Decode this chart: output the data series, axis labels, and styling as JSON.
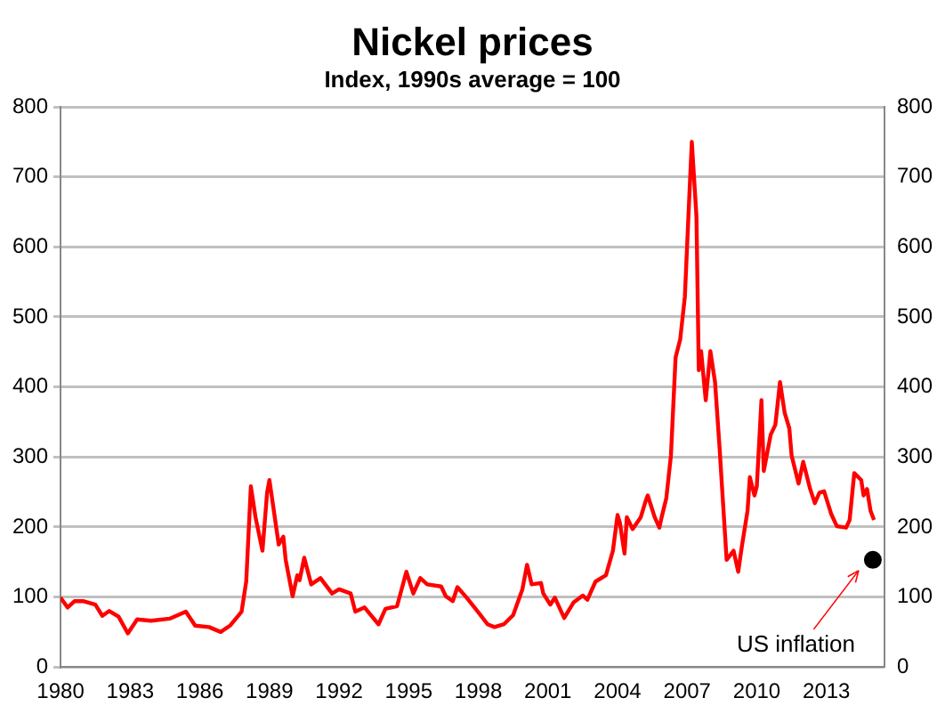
{
  "chart_data": {
    "type": "line",
    "title": "Nickel prices",
    "subtitle": "Index, 1990s average = 100",
    "xlim": [
      1980,
      2015.5
    ],
    "xticks": [
      1980,
      1983,
      1986,
      1989,
      1992,
      1995,
      1998,
      2001,
      2004,
      2007,
      2010,
      2013
    ],
    "ylim": [
      0,
      800
    ],
    "yticks": [
      0,
      100,
      200,
      300,
      400,
      500,
      600,
      700,
      800
    ],
    "y2lim": [
      0,
      800
    ],
    "y2ticks": [
      0,
      100,
      200,
      300,
      400,
      500,
      600,
      700,
      800
    ],
    "grid": "y",
    "legend": false,
    "marker": "none",
    "line_style": "solid",
    "series": [
      {
        "color": "#ff0000",
        "x": [
          1980.0,
          1980.3,
          1980.6,
          1981.0,
          1981.5,
          1981.8,
          1982.1,
          1982.5,
          1982.9,
          1983.3,
          1983.9,
          1984.7,
          1985.4,
          1985.8,
          1986.4,
          1986.9,
          1987.3,
          1987.8,
          1988.0,
          1988.2,
          1988.4,
          1988.7,
          1988.9,
          1989.0,
          1989.4,
          1989.6,
          1989.7,
          1990.0,
          1990.2,
          1990.3,
          1990.5,
          1990.8,
          1991.2,
          1991.7,
          1992.0,
          1992.5,
          1992.7,
          1993.1,
          1993.7,
          1994.0,
          1994.5,
          1994.9,
          1995.2,
          1995.5,
          1995.8,
          1996.4,
          1996.6,
          1996.9,
          1997.1,
          1997.5,
          1998.05,
          1998.4,
          1998.7,
          1999.1,
          1999.5,
          1999.9,
          2000.1,
          2000.3,
          2000.7,
          2000.8,
          2001.1,
          2001.3,
          2001.7,
          2002.1,
          2002.5,
          2002.7,
          2003.05,
          2003.5,
          2003.8,
          2004.0,
          2004.1,
          2004.3,
          2004.4,
          2004.65,
          2005.0,
          2005.2,
          2005.3,
          2005.6,
          2005.8,
          2005.9,
          2006.1,
          2006.3,
          2006.5,
          2006.7,
          2006.9,
          2007.1,
          2007.2,
          2007.4,
          2007.5,
          2007.6,
          2007.8,
          2008.0,
          2008.2,
          2008.4,
          2008.5,
          2008.7,
          2009.0,
          2009.2,
          2009.35,
          2009.6,
          2009.7,
          2009.9,
          2010.0,
          2010.2,
          2010.3,
          2010.6,
          2010.8,
          2011.0,
          2011.2,
          2011.4,
          2011.5,
          2011.8,
          2012.0,
          2012.3,
          2012.5,
          2012.7,
          2012.9,
          2013.2,
          2013.45,
          2013.85,
          2014.0,
          2014.2,
          2014.5,
          2014.6,
          2014.75,
          2014.9,
          2015.05
        ],
        "values": [
          99,
          85,
          94,
          94,
          89,
          73,
          80,
          72,
          48,
          68,
          66,
          69,
          79,
          59,
          57,
          50,
          59,
          79,
          122,
          258,
          214,
          166,
          249,
          267,
          175,
          186,
          153,
          101,
          131,
          124,
          156,
          118,
          127,
          105,
          111,
          105,
          79,
          85,
          61,
          83,
          87,
          136,
          105,
          127,
          118,
          115,
          101,
          94,
          114,
          99,
          76,
          61,
          57,
          61,
          74,
          111,
          146,
          118,
          120,
          105,
          89,
          99,
          70,
          92,
          102,
          96,
          122,
          131,
          166,
          217,
          206,
          162,
          214,
          197,
          214,
          236,
          245,
          214,
          199,
          214,
          241,
          302,
          442,
          468,
          529,
          678,
          750,
          643,
          424,
          451,
          381,
          451,
          407,
          311,
          258,
          153,
          166,
          136,
          171,
          223,
          271,
          245,
          258,
          381,
          280,
          332,
          346,
          407,
          363,
          341,
          302,
          262,
          293,
          254,
          234,
          249,
          251,
          219,
          201,
          199,
          210,
          277,
          267,
          245,
          254,
          223,
          210
        ]
      },
      {
        "type": "scatter",
        "name": "US inflation",
        "color": "#000000",
        "marker": "circle",
        "x": [
          2015.0
        ],
        "values": [
          153
        ]
      }
    ]
  }
}
